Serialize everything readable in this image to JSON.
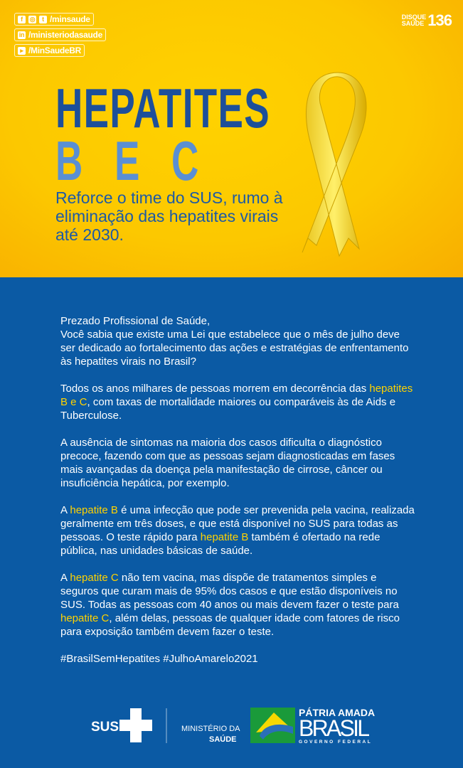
{
  "header": {
    "social": [
      {
        "icons": [
          "facebook-icon",
          "instagram-icon",
          "twitter-icon"
        ],
        "handle": "/minsaude"
      },
      {
        "icons": [
          "linkedin-icon"
        ],
        "handle": "/ministeriodasaude"
      },
      {
        "icons": [
          "youtube-icon"
        ],
        "handle": "/MinSaudeBR"
      }
    ],
    "disque_line1": "DISQUE",
    "disque_line2": "SAÚDE",
    "disque_number": "136"
  },
  "hero": {
    "title": "HEPATITES",
    "title2": "B E C",
    "subtitle": "Reforce o time do SUS, rumo à eliminação das hepatites virais até 2030."
  },
  "body": {
    "paragraphs": [
      [
        {
          "t": "Prezado Profissional de Saúde,\nVocê sabia que existe uma Lei que estabelece que o mês de julho deve ser dedicado ao fortalecimento das ações e estratégias de enfrentamento às hepatites virais no Brasil?"
        }
      ],
      [
        {
          "t": "Todos os anos milhares de pessoas morrem em decorrência das "
        },
        {
          "t": "hepatites B e C",
          "hl": true
        },
        {
          "t": ", com taxas de mortalidade maiores ou comparáveis às de Aids e Tuberculose."
        }
      ],
      [
        {
          "t": "A ausência de sintomas na maioria dos casos dificulta o diagnóstico precoce, fazendo com que as pessoas sejam diagnosticadas em fases mais avançadas da doença pela manifestação de cirrose, câncer ou insuficiência hepática, por exemplo."
        }
      ],
      [
        {
          "t": "A "
        },
        {
          "t": "hepatite B",
          "hl": true
        },
        {
          "t": " é uma infecção que pode ser prevenida pela vacina, realizada geralmente em três doses, e que está disponível no SUS para todas as pessoas. O teste rápido para "
        },
        {
          "t": "hepatite B",
          "hl": true
        },
        {
          "t": " também é ofertado na rede pública, nas unidades básicas de saúde."
        }
      ],
      [
        {
          "t": "A "
        },
        {
          "t": "hepatite C",
          "hl": true
        },
        {
          "t": " não tem vacina, mas dispõe de tratamentos simples e seguros que curam mais de 95% dos casos e que estão disponíveis no SUS. Todas as pessoas com 40 anos ou mais devem fazer o teste para "
        },
        {
          "t": "hepatite C",
          "hl": true
        },
        {
          "t": ", além delas, pessoas de qualquer idade com fatores de risco para exposição também devem fazer o teste."
        }
      ],
      [
        {
          "t": "#BrasilSemHepatites #JulhoAmarelo2021"
        }
      ]
    ]
  },
  "footer": {
    "sus": "SUS",
    "ministerio_line1": "MINISTÉRIO DA",
    "ministerio_line2": "SAÚDE",
    "patria": "PÁTRIA AMADA",
    "brasil": "BRASIL",
    "governo": "GOVERNO FEDERAL"
  },
  "colors": {
    "yellow": "#fcc800",
    "blue": "#0b5aa4",
    "highlight": "#ffd200",
    "title_blue": "#1d4f9a"
  }
}
